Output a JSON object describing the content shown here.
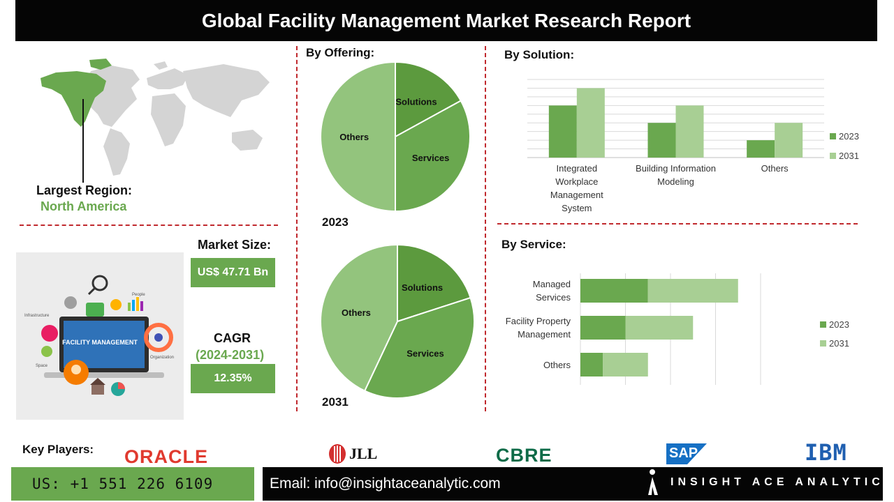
{
  "title": "Global Facility Management Market Research Report",
  "region": {
    "label": "Largest Region:",
    "value": "North America"
  },
  "market_size": {
    "label": "Market Size:",
    "value": "US$ 47.71 Bn"
  },
  "cagr": {
    "label": "CAGR",
    "period": "(2024-2031)",
    "value": "12.35%"
  },
  "illustration": {
    "screen_text": "FACILITY MANAGEMENT",
    "tags": [
      "People",
      "Infrastructure",
      "Space",
      "Organization"
    ]
  },
  "key_players": {
    "label": "Key Players:",
    "logos": [
      "ORACLE",
      "JLL",
      "CBRE",
      "SAP",
      "IBM"
    ]
  },
  "footer": {
    "phone": "US: +1 551 226 6109",
    "email": "Email: info@insightaceanalytic.com",
    "brand": "INSIGHT ACE ANALYTIC"
  },
  "colors": {
    "dark_green": "#5c9a3e",
    "mid_green": "#6aa84f",
    "light_green": "#a8cf94",
    "pie_other": "#93c47d",
    "divider_red": "#c0282d"
  },
  "chart_data": [
    {
      "type": "pie",
      "title": "By Offering:",
      "caption": "2023",
      "categories": [
        "Solutions",
        "Services",
        "Others"
      ],
      "values": [
        17,
        33,
        50
      ]
    },
    {
      "type": "pie",
      "caption": "2031",
      "categories": [
        "Solutions",
        "Services",
        "Others"
      ],
      "values": [
        20,
        37,
        43
      ]
    },
    {
      "type": "bar",
      "title": "By Solution:",
      "categories": [
        "Integrated Workplace Management System",
        "Building Information Modeling",
        "Others"
      ],
      "series": [
        {
          "name": "2023",
          "values": [
            3,
            2,
            1
          ]
        },
        {
          "name": "2031",
          "values": [
            4,
            3,
            2
          ]
        }
      ],
      "ylim": [
        0,
        4.5
      ],
      "grid": true,
      "legend": "right"
    },
    {
      "type": "bar",
      "orientation": "horizontal",
      "stacked": true,
      "title": "By Service:",
      "categories": [
        "Managed Services",
        "Facility Property Management",
        "Others"
      ],
      "series": [
        {
          "name": "2023",
          "values": [
            1.5,
            1.0,
            0.5
          ]
        },
        {
          "name": "2031",
          "values": [
            2.0,
            1.5,
            1.0
          ]
        }
      ],
      "xlim": [
        0,
        4
      ],
      "grid": true,
      "legend": "right"
    }
  ]
}
